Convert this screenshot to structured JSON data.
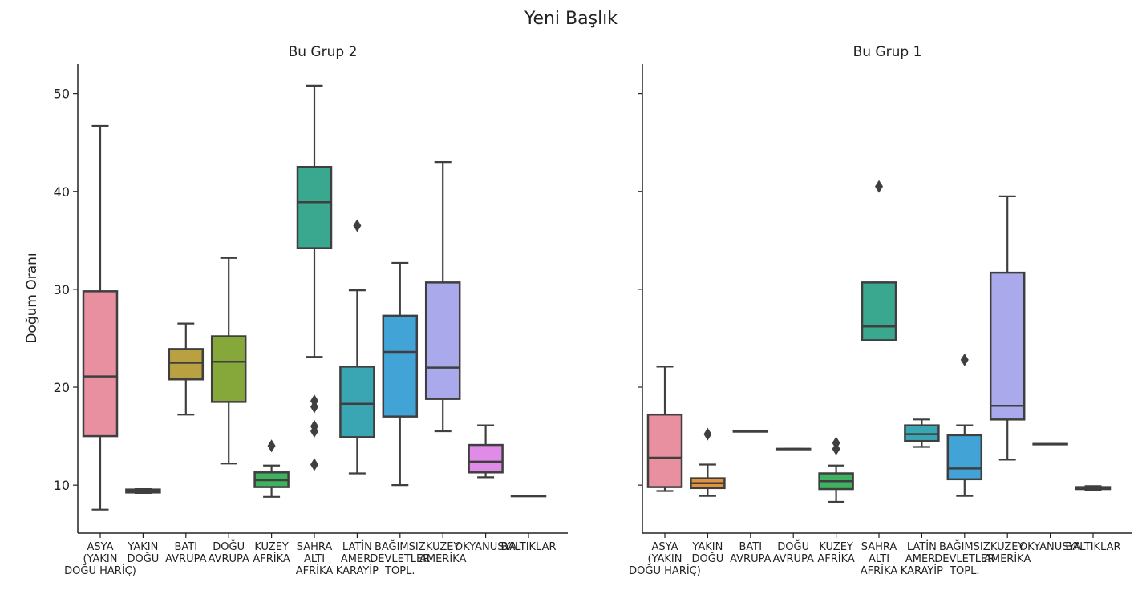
{
  "chart_data": {
    "type": "box",
    "title": "Yeni Başlık",
    "ylabel": "Doğum Oranı",
    "ylim": [
      5.1,
      53
    ],
    "yticks": [
      10,
      20,
      30,
      40,
      50
    ],
    "grid": false,
    "sharey": true,
    "categories": [
      "ASYA\n(YAKIN\nDOĞU HARİÇ)",
      "YAKIN\nDOĞU",
      "BATI\nAVRUPA",
      "DOĞU\nAVRUPA",
      "KUZEY\nAFRİKA",
      "SAHRA\nALTI\nAFRİKA",
      "LATİN\nAMER.\nKARAYİP",
      "BAĞIMSIZ\nDEVLETLER\nTOPL.",
      "KUZEY\nAMERİKA",
      "OKYANUSYA",
      "BALTIKLAR"
    ],
    "colors": [
      "#e8909f",
      "#e0923f",
      "#b9a040",
      "#86a83b",
      "#3eb25f",
      "#3aa88f",
      "#3aa6b4",
      "#41a3d6",
      "#a9a9ec",
      "#e08be8",
      "#e48aae"
    ],
    "panels": [
      {
        "title": "Bu Grup 2",
        "boxes": [
          {
            "whislo": 7.5,
            "q1": 15.0,
            "med": 21.1,
            "q3": 29.8,
            "whishi": 46.7,
            "fliers": []
          },
          {
            "whislo": 9.2,
            "q1": 9.25,
            "med": 9.4,
            "q3": 9.55,
            "whishi": 9.6,
            "fliers": []
          },
          {
            "whislo": 17.2,
            "q1": 20.8,
            "med": 22.5,
            "q3": 23.9,
            "whishi": 26.5,
            "fliers": []
          },
          {
            "whislo": 12.2,
            "q1": 18.5,
            "med": 22.6,
            "q3": 25.2,
            "whishi": 33.2,
            "fliers": []
          },
          {
            "whislo": 8.8,
            "q1": 9.8,
            "med": 10.5,
            "q3": 11.3,
            "whishi": 12.0,
            "fliers": [
              14.0
            ]
          },
          {
            "whislo": 23.1,
            "q1": 34.2,
            "med": 38.9,
            "q3": 42.5,
            "whishi": 50.8,
            "fliers": [
              12.1,
              15.5,
              16.0,
              18.0,
              18.6
            ]
          },
          {
            "whislo": 11.2,
            "q1": 14.9,
            "med": 18.3,
            "q3": 22.1,
            "whishi": 29.9,
            "fliers": [
              36.5
            ]
          },
          {
            "whislo": 10.0,
            "q1": 17.0,
            "med": 23.6,
            "q3": 27.3,
            "whishi": 32.7,
            "fliers": []
          },
          {
            "whislo": 15.5,
            "q1": 18.8,
            "med": 22.0,
            "q3": 30.7,
            "whishi": 43.0,
            "fliers": []
          },
          {
            "whislo": 10.8,
            "q1": 11.3,
            "med": 12.4,
            "q3": 14.1,
            "whishi": 16.1,
            "fliers": []
          },
          {
            "whislo": 8.9,
            "q1": 8.9,
            "med": 8.9,
            "q3": 8.9,
            "whishi": 8.9,
            "fliers": []
          }
        ]
      },
      {
        "title": "Bu Grup 1",
        "boxes": [
          {
            "whislo": 9.4,
            "q1": 9.8,
            "med": 12.8,
            "q3": 17.2,
            "whishi": 22.1,
            "fliers": []
          },
          {
            "whislo": 8.9,
            "q1": 9.7,
            "med": 10.2,
            "q3": 10.7,
            "whishi": 12.1,
            "fliers": [
              15.2
            ]
          },
          {
            "whislo": 15.5,
            "q1": 15.5,
            "med": 15.5,
            "q3": 15.5,
            "whishi": 15.5,
            "fliers": []
          },
          {
            "whislo": 13.7,
            "q1": 13.7,
            "med": 13.7,
            "q3": 13.7,
            "whishi": 13.7,
            "fliers": []
          },
          {
            "whislo": 8.3,
            "q1": 9.6,
            "med": 10.4,
            "q3": 11.2,
            "whishi": 12.0,
            "fliers": [
              13.7,
              14.3
            ]
          },
          {
            "whislo": 24.8,
            "q1": 24.8,
            "med": 26.2,
            "q3": 30.7,
            "whishi": 30.7,
            "fliers": [
              40.5
            ]
          },
          {
            "whislo": 13.9,
            "q1": 14.5,
            "med": 15.2,
            "q3": 16.1,
            "whishi": 16.7,
            "fliers": []
          },
          {
            "whislo": 8.9,
            "q1": 10.6,
            "med": 11.7,
            "q3": 15.1,
            "whishi": 16.1,
            "fliers": [
              22.8
            ]
          },
          {
            "whislo": 12.6,
            "q1": 16.7,
            "med": 18.1,
            "q3": 31.7,
            "whishi": 39.5,
            "fliers": []
          },
          {
            "whislo": 14.2,
            "q1": 14.2,
            "med": 14.2,
            "q3": 14.2,
            "whishi": 14.2,
            "fliers": []
          },
          {
            "whislo": 9.5,
            "q1": 9.6,
            "med": 9.7,
            "q3": 9.8,
            "whishi": 9.9,
            "fliers": []
          }
        ]
      }
    ]
  }
}
